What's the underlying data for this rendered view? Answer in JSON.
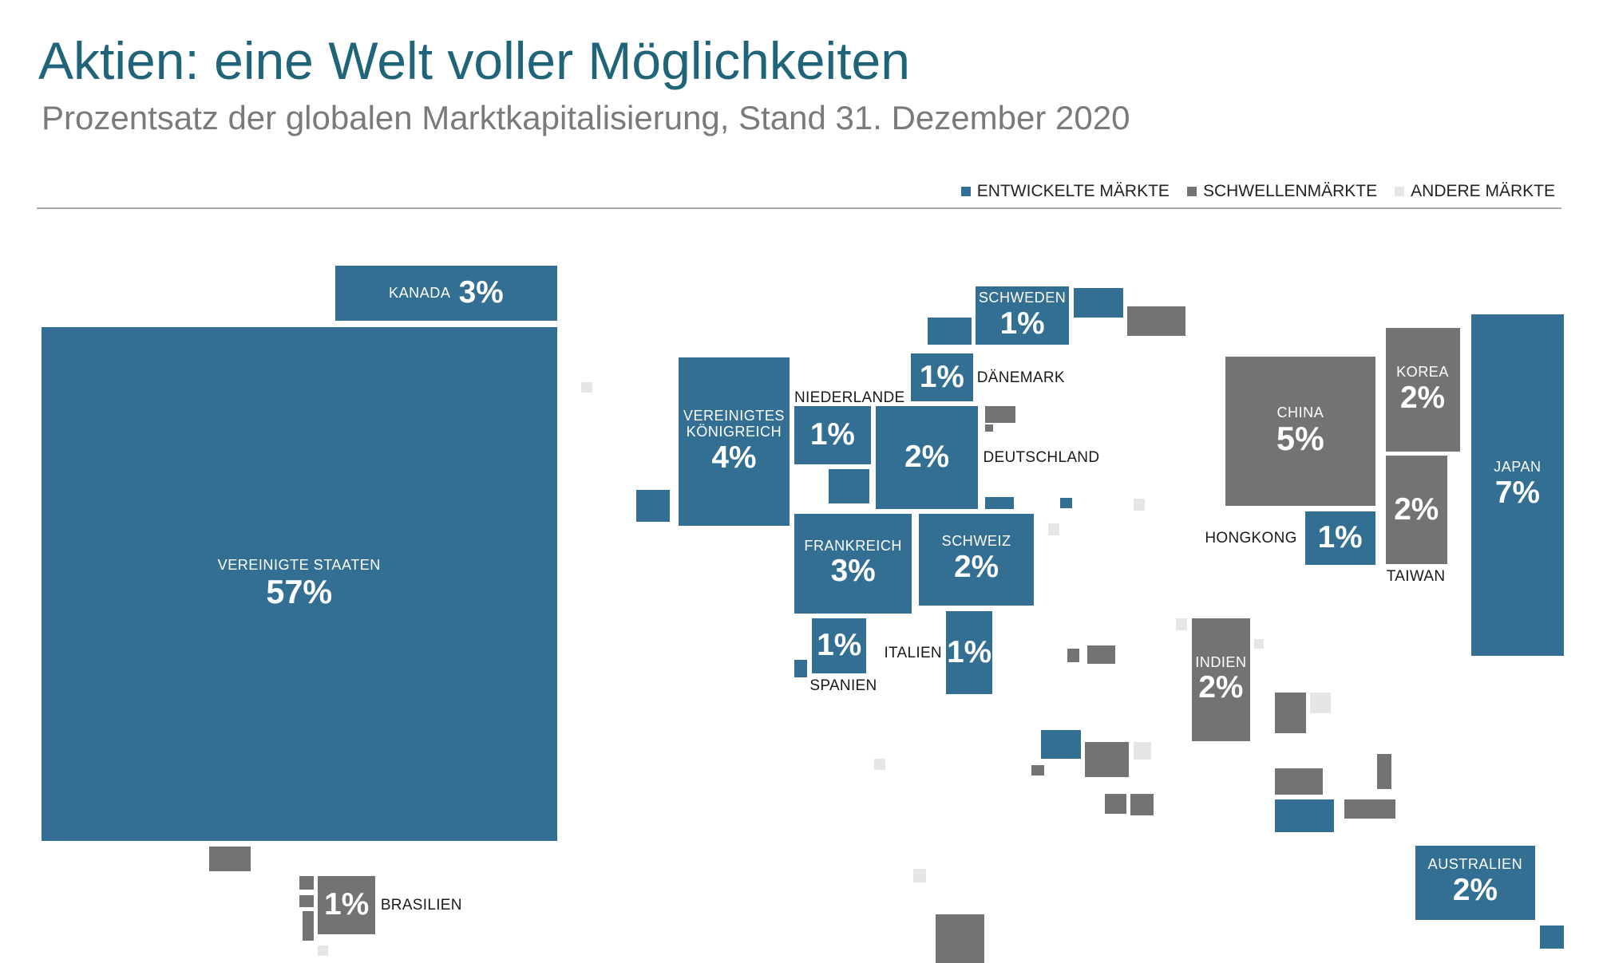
{
  "header": {
    "title": "Aktien: eine Welt voller Möglichkeiten",
    "subtitle": "Prozentsatz der globalen Marktkapitalisierung, Stand 31. Dezember 2020"
  },
  "legend": [
    {
      "label": "ENTWICKELTE MÄRKTE",
      "color": "#336f93"
    },
    {
      "label": "SCHWELLENMÄRKTE",
      "color": "#737373"
    },
    {
      "label": "ANDERE MÄRKTE",
      "color": "#e6e6e6"
    }
  ],
  "colors": {
    "developed": "#336f93",
    "emerging": "#737373",
    "other": "#e6e6e6"
  },
  "chart_data": {
    "type": "treemap-cartogram",
    "unit": "%",
    "labeled_markets": [
      {
        "name": "VEREINIGTE STAATEN",
        "value": 57,
        "value_label": "57%",
        "category": "developed"
      },
      {
        "name": "JAPAN",
        "value": 7,
        "value_label": "7%",
        "category": "developed"
      },
      {
        "name": "CHINA",
        "value": 5,
        "value_label": "5%",
        "category": "emerging"
      },
      {
        "name": "VEREINIGTES KÖNIGREICH",
        "value": 4,
        "value_label": "4%",
        "category": "developed"
      },
      {
        "name": "KANADA",
        "value": 3,
        "value_label": "3%",
        "category": "developed"
      },
      {
        "name": "FRANKREICH",
        "value": 3,
        "value_label": "3%",
        "category": "developed"
      },
      {
        "name": "DEUTSCHLAND",
        "value": 2,
        "value_label": "2%",
        "category": "developed"
      },
      {
        "name": "SCHWEIZ",
        "value": 2,
        "value_label": "2%",
        "category": "developed"
      },
      {
        "name": "AUSTRALIEN",
        "value": 2,
        "value_label": "2%",
        "category": "developed"
      },
      {
        "name": "KOREA",
        "value": 2,
        "value_label": "2%",
        "category": "emerging"
      },
      {
        "name": "TAIWAN",
        "value": 2,
        "value_label": "2%",
        "category": "emerging"
      },
      {
        "name": "INDIEN",
        "value": 2,
        "value_label": "2%",
        "category": "emerging"
      },
      {
        "name": "NIEDERLANDE",
        "value": 1,
        "value_label": "1%",
        "category": "developed"
      },
      {
        "name": "SCHWEDEN",
        "value": 1,
        "value_label": "1%",
        "category": "developed"
      },
      {
        "name": "DÄNEMARK",
        "value": 1,
        "value_label": "1%",
        "category": "developed"
      },
      {
        "name": "SPANIEN",
        "value": 1,
        "value_label": "1%",
        "category": "developed"
      },
      {
        "name": "ITALIEN",
        "value": 1,
        "value_label": "1%",
        "category": "developed"
      },
      {
        "name": "HONGKONG",
        "value": 1,
        "value_label": "1%",
        "category": "developed"
      },
      {
        "name": "BRASILIEN",
        "value": 1,
        "value_label": "1%",
        "category": "emerging"
      }
    ]
  }
}
